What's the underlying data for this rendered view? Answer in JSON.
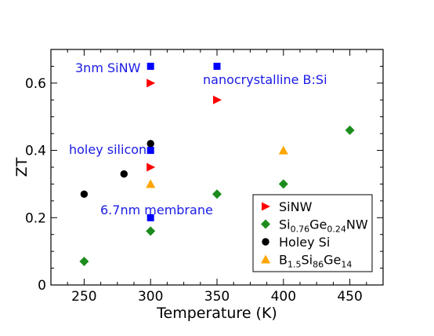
{
  "chart_data": {
    "type": "scatter",
    "title": "",
    "xlabel": "Temperature (K)",
    "ylabel": "ZT",
    "xlim": [
      225,
      475
    ],
    "ylim": [
      0,
      0.7
    ],
    "x_ticks": [
      250,
      300,
      350,
      400,
      450
    ],
    "y_ticks": [
      0,
      0.2,
      0.4,
      0.6
    ],
    "y_tick_labels": [
      "0",
      "0.2",
      "0.4",
      "0.6"
    ],
    "grid": false,
    "legend_position": "bottom-right",
    "series": [
      {
        "name": "SiNW",
        "legend_main": "SiNW",
        "marker": "triangle-right",
        "color": "#ff0000",
        "points": [
          [
            300,
            0.6
          ],
          [
            350,
            0.55
          ],
          [
            300,
            0.35
          ]
        ]
      },
      {
        "name": "Si0.76Ge0.24NW",
        "legend_main": "Si",
        "legend_sub1": "0.76",
        "legend_mid": "Ge",
        "legend_sub2": "0.24",
        "legend_end": "NW",
        "marker": "diamond",
        "color": "#1c8c1c",
        "points": [
          [
            250,
            0.07
          ],
          [
            300,
            0.16
          ],
          [
            350,
            0.27
          ],
          [
            400,
            0.3
          ],
          [
            450,
            0.46
          ]
        ]
      },
      {
        "name": "Holey Si",
        "legend_main": "Holey Si",
        "marker": "circle",
        "color": "#000000",
        "points": [
          [
            250,
            0.27
          ],
          [
            280,
            0.33
          ],
          [
            300,
            0.42
          ]
        ]
      },
      {
        "name": "B1.5Si86Ge14",
        "legend_main": "B",
        "legend_sub1": "1.5",
        "legend_mid": "Si",
        "legend_sub2": "86",
        "legend_mid2": "Ge",
        "legend_sub3": "14",
        "marker": "triangle-up",
        "color": "#ffa500",
        "points": [
          [
            300,
            0.3
          ],
          [
            400,
            0.4
          ]
        ]
      },
      {
        "name": "",
        "marker": "square",
        "color": "#0000ff",
        "points": [
          [
            300,
            0.65
          ],
          [
            350,
            0.65
          ],
          [
            300,
            0.4
          ],
          [
            300,
            0.2
          ]
        ]
      }
    ],
    "annotations": [
      {
        "text": "3nm SiNW"
      },
      {
        "text": "nanocrystalline B:Si"
      },
      {
        "text": "holey silicon"
      },
      {
        "text": "6.7nm membrane"
      }
    ]
  }
}
